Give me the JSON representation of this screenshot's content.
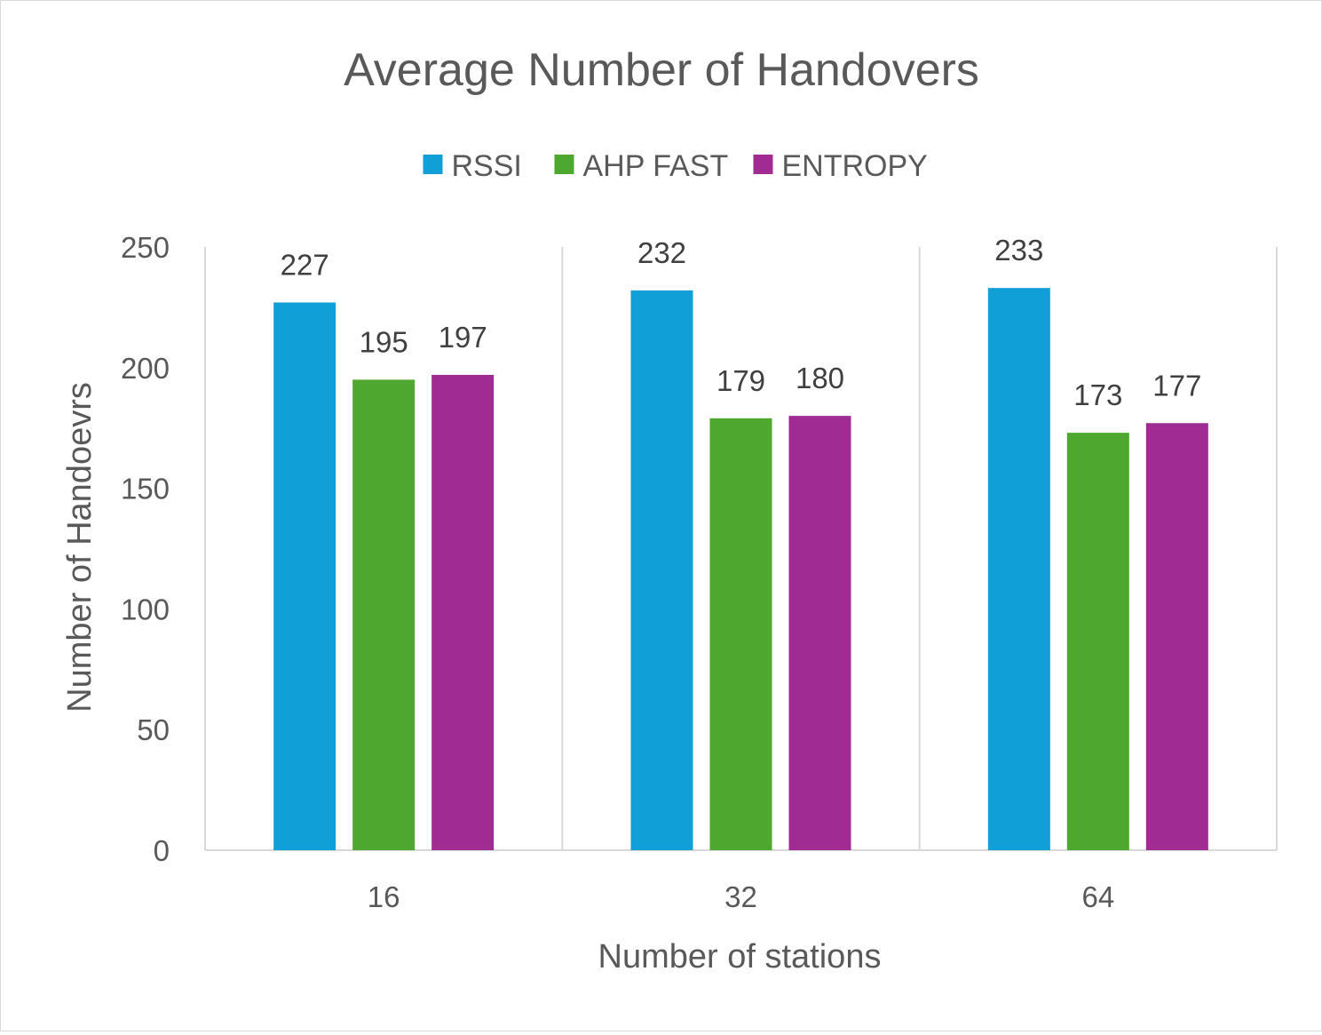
{
  "chart_data": {
    "type": "bar",
    "title": "Average Number of Handovers",
    "xlabel": "Number of stations",
    "ylabel": "Number of Handoevrs",
    "categories": [
      "16",
      "32",
      "64"
    ],
    "series": [
      {
        "name": "RSSI",
        "color": "#109fd6",
        "values": [
          227,
          232,
          233
        ]
      },
      {
        "name": "AHP FAST",
        "color": "#4ea72e",
        "values": [
          195,
          179,
          173
        ]
      },
      {
        "name": "ENTROPY",
        "color": "#a02b93",
        "values": [
          197,
          180,
          177
        ]
      }
    ],
    "ylim": [
      0,
      250
    ],
    "yticks": [
      0,
      50,
      100,
      150,
      200,
      250
    ],
    "grid": "vertical category separators",
    "legend_position": "top",
    "data_labels": true
  }
}
